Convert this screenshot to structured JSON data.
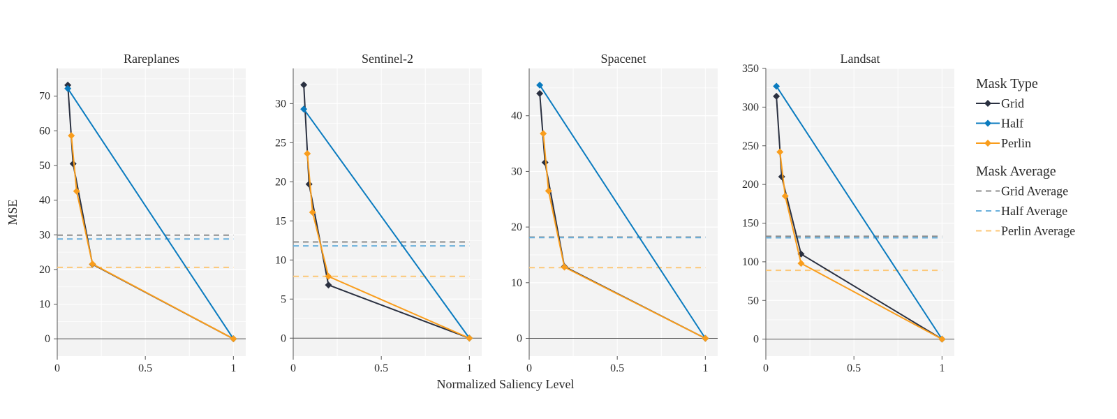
{
  "chart_data": {
    "type": "line",
    "xlabel": "Normalized Saliency Level",
    "ylabel": "MSE",
    "xticks": [
      0,
      0.5,
      1
    ],
    "xtick_labels": [
      "0",
      "0.5",
      "1"
    ],
    "xlim": [
      0,
      1.07
    ],
    "grid": true,
    "legend_position": "right",
    "legend": {
      "groups": [
        {
          "title": "Mask Type",
          "entries": [
            {
              "label": "Grid",
              "series": "Grid",
              "style": "line-marker"
            },
            {
              "label": "Half",
              "series": "Half",
              "style": "line-marker"
            },
            {
              "label": "Perlin",
              "series": "Perlin",
              "style": "line-marker"
            }
          ]
        },
        {
          "title": "Mask Average",
          "entries": [
            {
              "label": "Grid Average",
              "series": "Grid",
              "style": "dash"
            },
            {
              "label": "Half Average",
              "series": "Half",
              "style": "dash"
            },
            {
              "label": "Perlin Average",
              "series": "Perlin",
              "style": "dash"
            }
          ]
        }
      ]
    },
    "colors": {
      "Grid": "#2a3040",
      "Half": "#0a7bbf",
      "Perlin": "#f99d1c",
      "Grid_avg": "#8c8c8c",
      "Half_avg": "#6ab0dc",
      "Perlin_avg": "#fcc777"
    },
    "panels": [
      {
        "title": "Rareplanes",
        "ylim": [
          -5,
          78
        ],
        "yticks": [
          0,
          10,
          20,
          30,
          40,
          50,
          60,
          70
        ],
        "series": [
          {
            "name": "Grid",
            "x": [
              0.06,
              0.09,
              0.2,
              1.0
            ],
            "y": [
              73.2,
              50.5,
              21.5,
              0
            ]
          },
          {
            "name": "Half",
            "x": [
              0.06,
              1.0
            ],
            "y": [
              72.2,
              0
            ]
          },
          {
            "name": "Perlin",
            "x": [
              0.08,
              0.11,
              0.2,
              1.0
            ],
            "y": [
              58.6,
              42.6,
              21.6,
              0
            ]
          }
        ],
        "averages": {
          "Grid": 29.9,
          "Half": 28.8,
          "Perlin": 20.6
        }
      },
      {
        "title": "Sentinel-2",
        "ylim": [
          -2.3,
          34.5
        ],
        "yticks": [
          0,
          5,
          10,
          15,
          20,
          25,
          30
        ],
        "series": [
          {
            "name": "Grid",
            "x": [
              0.06,
              0.09,
              0.2,
              1.0
            ],
            "y": [
              32.4,
              19.7,
              6.8,
              0
            ]
          },
          {
            "name": "Half",
            "x": [
              0.06,
              1.0
            ],
            "y": [
              29.3,
              0
            ]
          },
          {
            "name": "Perlin",
            "x": [
              0.08,
              0.11,
              0.2,
              1.0
            ],
            "y": [
              23.6,
              16.1,
              7.9,
              0
            ]
          }
        ],
        "averages": {
          "Grid": 12.3,
          "Half": 11.8,
          "Perlin": 7.9
        }
      },
      {
        "title": "Spacenet",
        "ylim": [
          -3.2,
          48.5
        ],
        "yticks": [
          0,
          10,
          20,
          30,
          40
        ],
        "series": [
          {
            "name": "Grid",
            "x": [
              0.06,
              0.09,
              0.2,
              1.0
            ],
            "y": [
              44.0,
              31.6,
              12.9,
              0
            ]
          },
          {
            "name": "Half",
            "x": [
              0.06,
              1.0
            ],
            "y": [
              45.5,
              0
            ]
          },
          {
            "name": "Perlin",
            "x": [
              0.08,
              0.11,
              0.2,
              1.0
            ],
            "y": [
              36.8,
              26.5,
              12.8,
              0
            ]
          }
        ],
        "averages": {
          "Grid": 18.2,
          "Half": 18.1,
          "Perlin": 12.7
        }
      },
      {
        "title": "Landsat",
        "ylim": [
          -22,
          350
        ],
        "yticks": [
          0,
          50,
          100,
          150,
          200,
          250,
          300,
          350
        ],
        "series": [
          {
            "name": "Grid",
            "x": [
              0.06,
              0.09,
              0.2,
              1.0
            ],
            "y": [
              314,
              210,
              110,
              0
            ]
          },
          {
            "name": "Half",
            "x": [
              0.06,
              1.0
            ],
            "y": [
              327,
              0
            ]
          },
          {
            "name": "Perlin",
            "x": [
              0.08,
              0.11,
              0.2,
              1.0
            ],
            "y": [
              242,
              185,
              98,
              0
            ]
          }
        ],
        "averages": {
          "Grid": 133,
          "Half": 131,
          "Perlin": 89
        }
      }
    ]
  }
}
